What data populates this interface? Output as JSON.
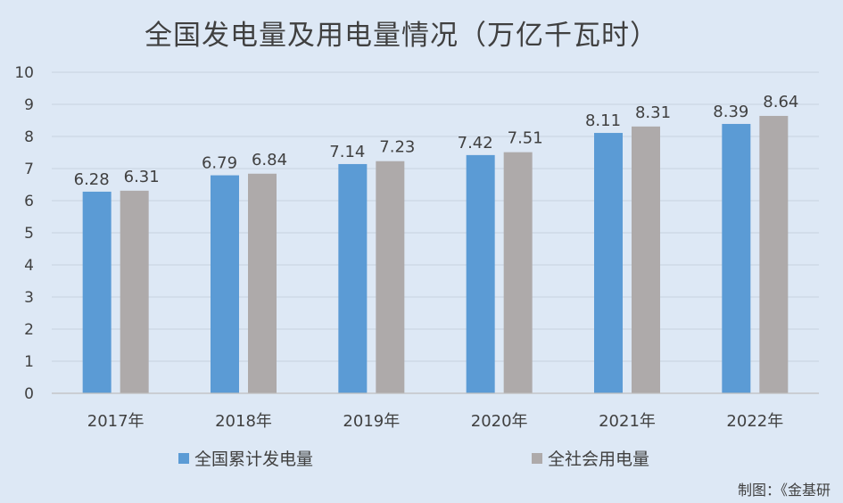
{
  "chart_data": {
    "type": "bar",
    "title": "全国发电量及用电量情况（万亿千瓦时）",
    "categories": [
      "2017年",
      "2018年",
      "2019年",
      "2020年",
      "2021年",
      "2022年"
    ],
    "series": [
      {
        "name": "全国累计发电量",
        "values": [
          6.28,
          6.79,
          7.14,
          7.42,
          8.11,
          8.39
        ],
        "color": "#5b9bd5"
      },
      {
        "name": "全社会用电量",
        "values": [
          6.31,
          6.84,
          7.23,
          7.51,
          8.31,
          8.64
        ],
        "color": "#aeaaaa"
      }
    ],
    "ylim": [
      0,
      10
    ],
    "yticks": [
      "0",
      "1",
      "2",
      "3",
      "4",
      "5",
      "6",
      "7",
      "8",
      "9",
      "10"
    ],
    "grid": true,
    "legend_position": "bottom"
  },
  "source": "制图：《金基研"
}
